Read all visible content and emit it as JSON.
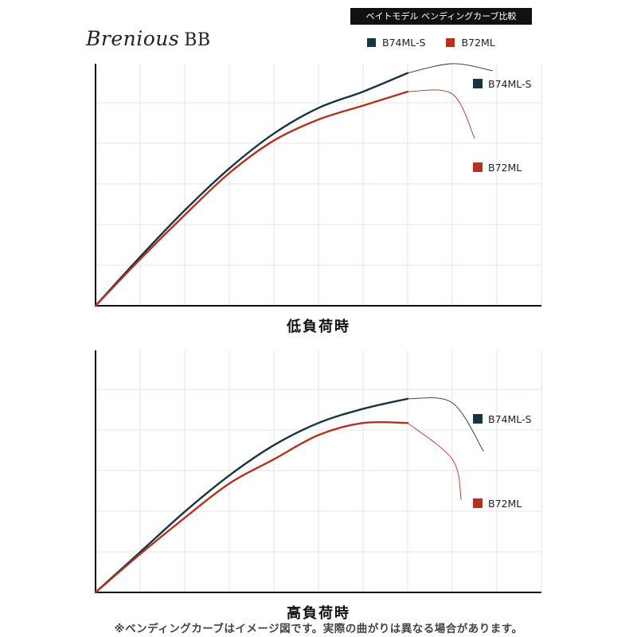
{
  "brand": {
    "name": "Brenious",
    "model": "BB"
  },
  "badge": "ベイトモデル ベンディングカーブ比較",
  "legend": [
    {
      "label": "B74ML-S",
      "color": "#163540"
    },
    {
      "label": "B72ML",
      "color": "#b3321f"
    }
  ],
  "footnote": "※ベンディングカーブはイメージ図です。実際の曲がりは異なる場合があります。",
  "chart_data": [
    {
      "type": "line",
      "title": "低負荷時",
      "xlabel": "",
      "ylabel": "",
      "xlim": [
        0,
        10
      ],
      "ylim": [
        0,
        5.2
      ],
      "grid": true,
      "legend_position": "right",
      "series": [
        {
          "name": "B74ML-S",
          "color": "#163540",
          "x": [
            0,
            1,
            2,
            3,
            4,
            5,
            6,
            7,
            8,
            8.9
          ],
          "y": [
            0,
            1.05,
            2.05,
            2.95,
            3.7,
            4.25,
            4.6,
            5.0,
            5.2,
            5.05
          ]
        },
        {
          "name": "B72ML",
          "color": "#b3321f",
          "x": [
            0,
            1,
            2,
            3,
            4,
            5,
            6,
            7,
            8,
            8.5
          ],
          "y": [
            0,
            1.0,
            1.95,
            2.85,
            3.55,
            4.0,
            4.3,
            4.6,
            4.55,
            3.6
          ]
        }
      ]
    },
    {
      "type": "line",
      "title": "高負荷時",
      "xlabel": "",
      "ylabel": "",
      "xlim": [
        0,
        10
      ],
      "ylim": [
        0,
        6
      ],
      "grid": true,
      "legend_position": "right",
      "series": [
        {
          "name": "B74ML-S",
          "color": "#163540",
          "x": [
            0,
            1,
            2,
            3,
            4,
            5,
            6,
            7,
            8,
            8.7
          ],
          "y": [
            0,
            1.0,
            2.0,
            2.9,
            3.65,
            4.2,
            4.55,
            4.8,
            4.7,
            3.5
          ]
        },
        {
          "name": "B72ML",
          "color": "#b3321f",
          "x": [
            0,
            1,
            2,
            3,
            4,
            5,
            6,
            7,
            8,
            8.2
          ],
          "y": [
            0,
            0.95,
            1.85,
            2.7,
            3.3,
            3.9,
            4.2,
            4.2,
            3.3,
            2.3
          ]
        }
      ]
    }
  ]
}
